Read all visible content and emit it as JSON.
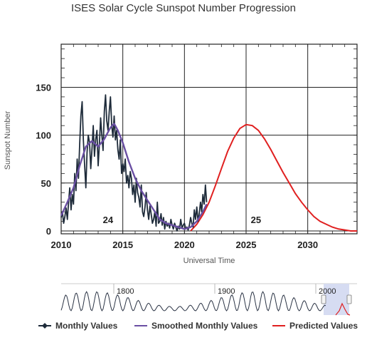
{
  "chart_data": {
    "type": "line",
    "title": "ISES Solar Cycle Sunspot Number Progression",
    "xlabel": "Universal Time",
    "ylabel": "Sunspot Number",
    "xlim": [
      2010,
      2034
    ],
    "ylim": [
      -3,
      195
    ],
    "x_ticks": [
      2010,
      2015,
      2020,
      2025,
      2030
    ],
    "y_ticks": [
      0,
      50,
      100,
      150
    ],
    "grid": true,
    "legend_placement": "bottom",
    "cycle_labels": [
      {
        "text": "24",
        "x": 2013.8,
        "y": 8
      },
      {
        "text": "25",
        "x": 2025.8,
        "y": 8
      }
    ],
    "series": [
      {
        "name": "Monthly Values",
        "color": "#1e2b3a",
        "marker": "diamond",
        "x": [
          2010.0,
          2010.1,
          2010.2,
          2010.3,
          2010.4,
          2010.5,
          2010.6,
          2010.7,
          2010.8,
          2010.9,
          2011.0,
          2011.1,
          2011.2,
          2011.3,
          2011.4,
          2011.5,
          2011.6,
          2011.7,
          2011.8,
          2011.9,
          2012.0,
          2012.1,
          2012.2,
          2012.3,
          2012.4,
          2012.5,
          2012.6,
          2012.7,
          2012.8,
          2012.9,
          2013.0,
          2013.1,
          2013.2,
          2013.3,
          2013.4,
          2013.5,
          2013.6,
          2013.7,
          2013.8,
          2013.9,
          2014.0,
          2014.1,
          2014.2,
          2014.3,
          2014.4,
          2014.5,
          2014.6,
          2014.7,
          2014.8,
          2014.9,
          2015.0,
          2015.1,
          2015.2,
          2015.3,
          2015.4,
          2015.5,
          2015.6,
          2015.7,
          2015.8,
          2015.9,
          2016.0,
          2016.1,
          2016.2,
          2016.3,
          2016.4,
          2016.5,
          2016.6,
          2016.7,
          2016.8,
          2016.9,
          2017.0,
          2017.1,
          2017.2,
          2017.3,
          2017.4,
          2017.5,
          2017.6,
          2017.7,
          2017.8,
          2017.9,
          2018.0,
          2018.1,
          2018.2,
          2018.3,
          2018.4,
          2018.5,
          2018.6,
          2018.7,
          2018.8,
          2018.9,
          2019.0,
          2019.1,
          2019.2,
          2019.3,
          2019.4,
          2019.5,
          2019.6,
          2019.7,
          2019.8,
          2019.9,
          2020.0,
          2020.1,
          2020.2,
          2020.3,
          2020.4,
          2020.5,
          2020.6,
          2020.7,
          2020.8,
          2020.9,
          2021.0,
          2021.1,
          2021.2,
          2021.3,
          2021.4,
          2021.5,
          2021.6,
          2021.7,
          2021.8
        ],
        "values": [
          14,
          20,
          8,
          15,
          24,
          12,
          30,
          45,
          22,
          38,
          28,
          60,
          42,
          75,
          55,
          90,
          120,
          135,
          95,
          70,
          45,
          82,
          100,
          92,
          65,
          85,
          110,
          78,
          95,
          105,
          68,
          90,
          118,
          100,
          84,
          125,
          142,
          115,
          105,
          125,
          140,
          110,
          98,
          120,
          95,
          105,
          85,
          75,
          95,
          60,
          70,
          62,
          75,
          50,
          58,
          45,
          62,
          55,
          38,
          48,
          30,
          55,
          40,
          35,
          25,
          48,
          20,
          15,
          25,
          40,
          22,
          12,
          26,
          18,
          8,
          12,
          20,
          5,
          30,
          8,
          10,
          18,
          6,
          14,
          2,
          10,
          5,
          8,
          3,
          12,
          6,
          2,
          8,
          4,
          0,
          5,
          2,
          12,
          3,
          6,
          8,
          2,
          4,
          1,
          6,
          14,
          8,
          4,
          22,
          12,
          25,
          10,
          18,
          30,
          20,
          38,
          28,
          48,
          30
        ]
      },
      {
        "name": "Smoothed Monthly Values",
        "color": "#6a4fa3",
        "x": [
          2010.0,
          2010.5,
          2011.0,
          2011.5,
          2012.0,
          2012.5,
          2013.0,
          2013.5,
          2014.0,
          2014.3,
          2014.6,
          2015.0,
          2015.5,
          2016.0,
          2016.5,
          2017.0,
          2017.5,
          2018.0,
          2018.5,
          2019.0,
          2019.5,
          2020.0,
          2020.5,
          2021.0,
          2021.5,
          2021.8
        ],
        "values": [
          16,
          30,
          45,
          68,
          88,
          94,
          88,
          96,
          108,
          112,
          105,
          92,
          72,
          55,
          42,
          32,
          22,
          12,
          8,
          6,
          4,
          2,
          4,
          10,
          20,
          28
        ]
      },
      {
        "name": "Predicted Values",
        "color": "#e02020",
        "x": [
          2020.5,
          2021.0,
          2021.5,
          2022.0,
          2022.5,
          2023.0,
          2023.5,
          2024.0,
          2024.5,
          2025.0,
          2025.5,
          2026.0,
          2026.5,
          2027.0,
          2027.5,
          2028.0,
          2028.5,
          2029.0,
          2029.5,
          2030.0,
          2030.5,
          2031.0,
          2031.5,
          2032.0,
          2032.5,
          2033.0,
          2033.5,
          2034.0
        ],
        "values": [
          0,
          7,
          17,
          30,
          47,
          65,
          83,
          97,
          107,
          111,
          110,
          105,
          96,
          85,
          73,
          61,
          50,
          39,
          30,
          22,
          15,
          10,
          7,
          4,
          2,
          1,
          0,
          0
        ]
      }
    ],
    "overview": {
      "tick_labels": [
        "1800",
        "1900",
        "2000"
      ]
    }
  }
}
